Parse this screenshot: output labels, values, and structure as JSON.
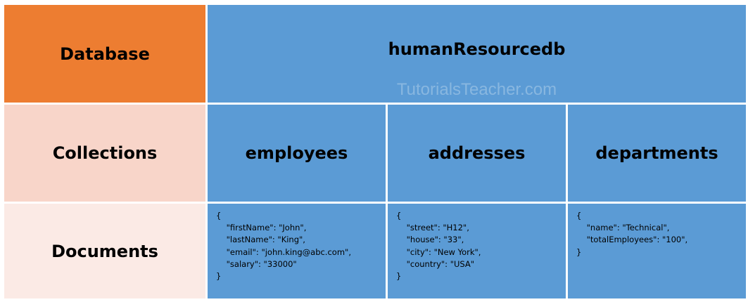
{
  "row_labels": {
    "database": "Database",
    "collections": "Collections",
    "documents": "Documents"
  },
  "database_name": "humanResourcedb",
  "watermark": "TutorialsTeacher.com",
  "collections": [
    {
      "name": "employees",
      "document": "{\n    \"firstName\": \"John\",\n    \"lastName\": \"King\",\n    \"email\": \"john.king@abc.com\",\n    \"salary\": \"33000\"\n}"
    },
    {
      "name": "addresses",
      "document": "{\n    \"street\": \"H12\",\n    \"house\": \"33\",\n    \"city\": \"New York\",\n    \"country\": \"USA\"\n}"
    },
    {
      "name": "departments",
      "document": "{\n    \"name\": \"Technical\",\n    \"totalEmployees\": \"100\",\n}"
    }
  ],
  "colors": {
    "database_label": "#ed7d31",
    "collections_label": "#f8d5c9",
    "documents_label": "#fbeae5",
    "blue_cells": "#5b9bd5"
  }
}
